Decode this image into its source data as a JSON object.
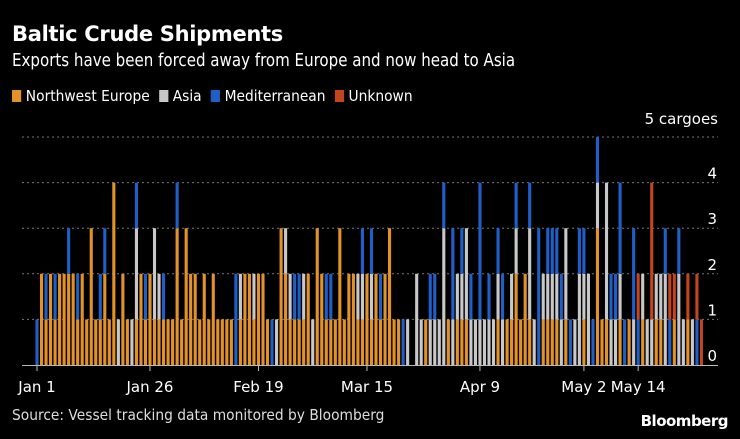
{
  "header": {
    "title": "Baltic Crude Shipments",
    "subtitle": "Exports have been forced away from Europe and now head to Asia"
  },
  "footer": {
    "source": "Source: Vessel tracking data monitored by Bloomberg",
    "brand": "Bloomberg"
  },
  "chart_data": {
    "type": "bar",
    "stacked": true,
    "title": "Baltic Crude Shipments",
    "subtitle": "Exports have been forced away from Europe and now head to Asia",
    "xlabel": "",
    "ylabel": "cargoes",
    "y_unit_label": "5 cargoes",
    "ylim": [
      0,
      5
    ],
    "yticks": [
      0,
      1,
      2,
      3,
      4,
      5
    ],
    "ytick_labels": [
      "0",
      "1",
      "2",
      "3",
      "4",
      "5 cargoes"
    ],
    "grid": true,
    "legend_position": "top-left",
    "x_start": "Jan 1",
    "x_ticks": [
      {
        "label": "Jan 1",
        "day": 0
      },
      {
        "label": "Jan 26",
        "day": 25
      },
      {
        "label": "Feb 19",
        "day": 49
      },
      {
        "label": "Mar 15",
        "day": 73
      },
      {
        "label": "Apr 9",
        "day": 98
      },
      {
        "label": "May 2",
        "day": 121
      },
      {
        "label": "May 14",
        "day": 133
      }
    ],
    "series": [
      {
        "name": "Northwest Europe",
        "color": "#e3922a"
      },
      {
        "name": "Asia",
        "color": "#c8c8c8"
      },
      {
        "name": "Mediterranean",
        "color": "#1f5fc8"
      },
      {
        "name": "Unknown",
        "color": "#c2451e"
      }
    ],
    "days": [
      [
        0,
        0,
        1,
        0
      ],
      [
        2,
        0,
        0,
        0
      ],
      [
        1,
        0,
        1,
        0
      ],
      [
        2,
        0,
        0,
        0
      ],
      [
        1,
        0,
        1,
        0
      ],
      [
        2,
        0,
        0,
        0
      ],
      [
        2,
        0,
        0,
        0
      ],
      [
        2,
        0,
        1,
        0
      ],
      [
        2,
        0,
        0,
        0
      ],
      [
        1,
        0,
        1,
        0
      ],
      [
        2,
        0,
        0,
        0
      ],
      [
        1,
        0,
        0,
        0
      ],
      [
        3,
        0,
        0,
        0
      ],
      [
        1,
        0,
        0,
        0
      ],
      [
        1,
        0,
        1,
        0
      ],
      [
        2,
        0,
        1,
        0
      ],
      [
        1,
        0,
        0,
        0
      ],
      [
        4,
        0,
        0,
        0
      ],
      [
        0,
        1,
        0,
        0
      ],
      [
        2,
        0,
        0,
        0
      ],
      [
        1,
        0,
        0,
        0
      ],
      [
        0,
        1,
        0,
        0
      ],
      [
        1,
        2,
        1,
        0
      ],
      [
        2,
        0,
        0,
        0
      ],
      [
        1,
        0,
        1,
        0
      ],
      [
        2,
        0,
        0,
        0
      ],
      [
        1,
        2,
        0,
        0
      ],
      [
        1,
        1,
        0,
        0
      ],
      [
        1,
        0,
        1,
        0
      ],
      [
        1,
        0,
        0,
        0
      ],
      [
        1,
        0,
        0,
        0
      ],
      [
        3,
        0,
        1,
        0
      ],
      [
        1,
        0,
        0,
        0
      ],
      [
        3,
        0,
        0,
        0
      ],
      [
        2,
        0,
        0,
        0
      ],
      [
        2,
        0,
        0,
        0
      ],
      [
        1,
        0,
        0,
        0
      ],
      [
        2,
        0,
        0,
        0
      ],
      [
        1,
        0,
        0,
        0
      ],
      [
        2,
        0,
        0,
        0
      ],
      [
        1,
        0,
        0,
        0
      ],
      [
        1,
        0,
        0,
        0
      ],
      [
        1,
        0,
        0,
        0
      ],
      [
        1,
        0,
        0,
        0
      ],
      [
        0,
        0,
        2,
        0
      ],
      [
        1,
        1,
        0,
        0
      ],
      [
        2,
        0,
        0,
        0
      ],
      [
        2,
        0,
        0,
        0
      ],
      [
        1,
        1,
        0,
        0
      ],
      [
        2,
        0,
        0,
        0
      ],
      [
        2,
        0,
        0,
        0
      ],
      [
        1,
        0,
        0,
        0
      ],
      [
        0,
        0,
        1,
        0
      ],
      [
        0,
        1,
        0,
        0
      ],
      [
        3,
        0,
        0,
        0
      ],
      [
        2,
        1,
        0,
        0
      ],
      [
        1,
        1,
        0,
        0
      ],
      [
        1,
        0,
        1,
        0
      ],
      [
        1,
        0,
        1,
        0
      ],
      [
        1,
        1,
        0,
        0
      ],
      [
        2,
        0,
        0,
        0
      ],
      [
        0,
        1,
        0,
        0
      ],
      [
        3,
        0,
        0,
        0
      ],
      [
        2,
        0,
        0,
        0
      ],
      [
        1,
        0,
        1,
        0
      ],
      [
        1,
        0,
        1,
        0
      ],
      [
        1,
        0,
        0,
        0
      ],
      [
        3,
        0,
        0,
        0
      ],
      [
        1,
        0,
        0,
        0
      ],
      [
        2,
        0,
        0,
        0
      ],
      [
        2,
        0,
        0,
        0
      ],
      [
        1,
        1,
        0,
        0
      ],
      [
        1,
        1,
        1,
        0
      ],
      [
        2,
        0,
        0,
        0
      ],
      [
        1,
        1,
        1,
        0
      ],
      [
        2,
        0,
        0,
        0
      ],
      [
        1,
        0,
        1,
        0
      ],
      [
        2,
        0,
        0,
        0
      ],
      [
        3,
        0,
        0,
        0
      ],
      [
        1,
        0,
        0,
        0
      ],
      [
        1,
        0,
        0,
        0
      ],
      [
        0,
        0,
        1,
        0
      ],
      [
        0,
        1,
        0,
        0
      ],
      [
        0,
        0,
        0,
        0
      ],
      [
        0,
        2,
        0,
        0
      ],
      [
        0,
        1,
        0,
        0
      ],
      [
        1,
        0,
        0,
        0
      ],
      [
        0,
        1,
        1,
        0
      ],
      [
        0,
        1,
        1,
        0
      ],
      [
        0,
        1,
        0,
        0
      ],
      [
        0,
        3,
        1,
        0
      ],
      [
        1,
        0,
        0,
        0
      ],
      [
        0,
        1,
        2,
        0
      ],
      [
        1,
        1,
        0,
        0
      ],
      [
        1,
        1,
        1,
        0
      ],
      [
        1,
        2,
        0,
        0
      ],
      [
        0,
        1,
        1,
        0
      ],
      [
        0,
        1,
        0,
        0
      ],
      [
        0,
        1,
        3,
        0
      ],
      [
        0,
        1,
        0,
        0
      ],
      [
        0,
        1,
        1,
        0
      ],
      [
        0,
        1,
        0,
        0
      ],
      [
        1,
        1,
        1,
        0
      ],
      [
        0,
        1,
        1,
        0
      ],
      [
        1,
        0,
        0,
        0
      ],
      [
        1,
        1,
        0,
        0
      ],
      [
        2,
        1,
        1,
        0
      ],
      [
        1,
        0,
        0,
        0
      ],
      [
        2,
        0,
        0,
        0
      ],
      [
        1,
        2,
        1,
        0
      ],
      [
        0,
        1,
        0,
        0
      ],
      [
        0,
        0,
        3,
        0
      ],
      [
        1,
        1,
        0,
        0
      ],
      [
        1,
        1,
        1,
        0
      ],
      [
        1,
        1,
        1,
        0
      ],
      [
        1,
        1,
        1,
        0
      ],
      [
        0,
        1,
        1,
        0
      ],
      [
        1,
        2,
        0,
        0
      ],
      [
        0,
        0,
        1,
        0
      ],
      [
        0,
        1,
        0,
        0
      ],
      [
        0,
        2,
        1,
        0
      ],
      [
        1,
        1,
        1,
        0
      ],
      [
        0,
        2,
        0,
        0
      ],
      [
        0,
        0,
        1,
        0
      ],
      [
        3,
        1,
        1,
        0
      ],
      [
        1,
        0,
        0,
        0
      ],
      [
        1,
        3,
        0,
        0
      ],
      [
        0,
        1,
        1,
        0
      ],
      [
        0,
        1,
        1,
        0
      ],
      [
        1,
        1,
        2,
        0
      ],
      [
        0,
        0,
        1,
        0
      ],
      [
        1,
        0,
        0,
        0
      ],
      [
        0,
        1,
        2,
        0
      ],
      [
        0,
        0,
        1,
        1
      ],
      [
        1,
        1,
        0,
        0
      ],
      [
        0,
        1,
        0,
        0
      ],
      [
        0,
        1,
        0,
        3
      ],
      [
        1,
        1,
        0,
        0
      ],
      [
        1,
        1,
        0,
        0
      ],
      [
        0,
        2,
        1,
        0
      ],
      [
        0,
        0,
        1,
        1
      ],
      [
        1,
        0,
        0,
        1
      ],
      [
        0,
        2,
        1,
        0
      ],
      [
        0,
        1,
        0,
        0
      ],
      [
        1,
        0,
        0,
        1
      ],
      [
        0,
        1,
        0,
        0
      ],
      [
        0,
        0,
        1,
        1
      ],
      [
        0,
        0,
        0,
        1
      ]
    ]
  }
}
